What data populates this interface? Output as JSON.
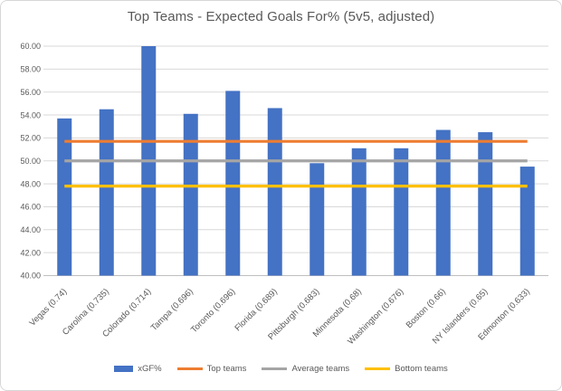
{
  "chart_data": {
    "type": "bar",
    "title": "Top Teams - Expected Goals For% (5v5, adjusted)",
    "categories": [
      "Vegas (0.74)",
      "Carolina (0.735)",
      "Colorado (0.714)",
      "Tampa (0.696)",
      "Toronto (0.696)",
      "Florida (0.689)",
      "Pittsburgh (0.683)",
      "Minnesota (0.68)",
      "Washington (0.676)",
      "Boston (0.66)",
      "NY Islanders (0.65)",
      "Edmonton (0.633)"
    ],
    "series": [
      {
        "name": "xGF%",
        "type": "bar",
        "color": "#4472C4",
        "values": [
          53.7,
          54.5,
          60.0,
          54.1,
          56.1,
          54.6,
          49.8,
          51.1,
          51.1,
          52.7,
          52.5,
          49.5
        ]
      },
      {
        "name": "Top teams",
        "type": "line",
        "color": "#ED7D31",
        "value": 51.7
      },
      {
        "name": "Average teams",
        "type": "line",
        "color": "#A5A5A5",
        "value": 50.0
      },
      {
        "name": "Bottom teams",
        "type": "line",
        "color": "#FFC000",
        "value": 47.8
      }
    ],
    "ylabel": "",
    "xlabel": "",
    "ylim": [
      40,
      60
    ],
    "ytick_step": 2,
    "ytick_decimals": 2,
    "grid": true,
    "legend_position": "bottom",
    "x_label_rotation_deg": 45,
    "style": {
      "grid_color": "#D9D9D9",
      "axis_line_color": "#BFBFBF",
      "tick_label_color": "#595959",
      "title_color": "#595959",
      "background": "#FFFFFF"
    }
  }
}
